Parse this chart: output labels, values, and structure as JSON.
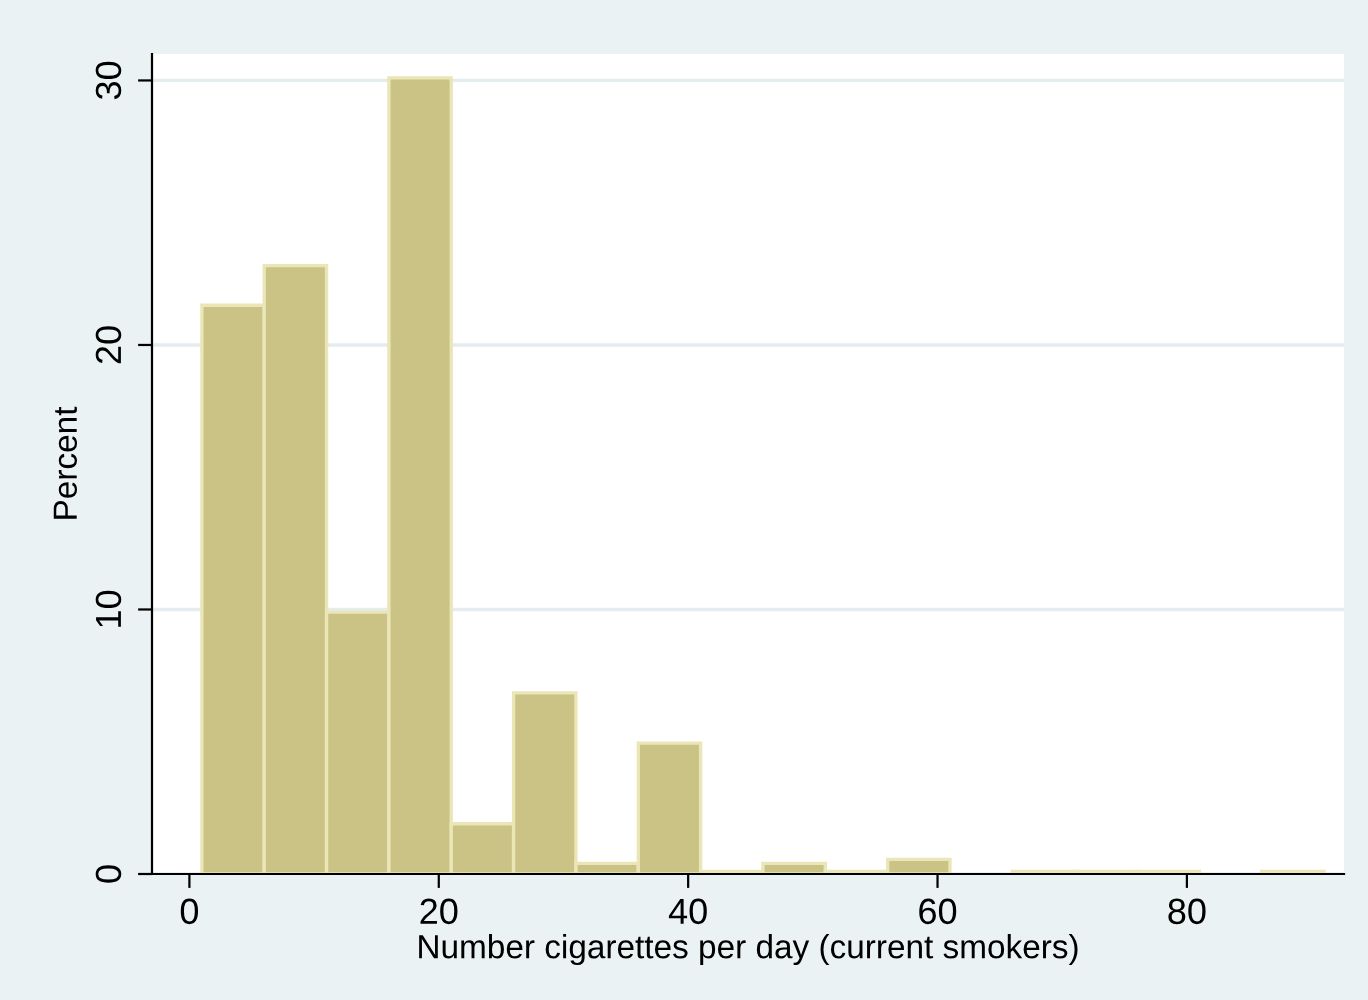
{
  "chart_data": {
    "type": "histogram",
    "xlabel": "Number cigarettes per day (current smokers)",
    "ylabel": "Percent",
    "bins": [
      1,
      6,
      11,
      16,
      21,
      26,
      31,
      36,
      41,
      46,
      51,
      56,
      61,
      66,
      71,
      76,
      81,
      86,
      91
    ],
    "values": [
      21.5,
      23.0,
      9.9,
      30.1,
      1.9,
      6.85,
      0.4,
      4.95,
      0.1,
      0.4,
      0.1,
      0.55,
      0,
      0.1,
      0.1,
      0.1,
      0,
      0.1
    ],
    "color": "#cbc385",
    "xlim": [
      -3,
      92.6
    ],
    "ylim": [
      0,
      31
    ],
    "xticks": [
      0,
      20,
      40,
      60,
      80
    ],
    "yticks": [
      0,
      10,
      20,
      30
    ],
    "grid": "y"
  }
}
